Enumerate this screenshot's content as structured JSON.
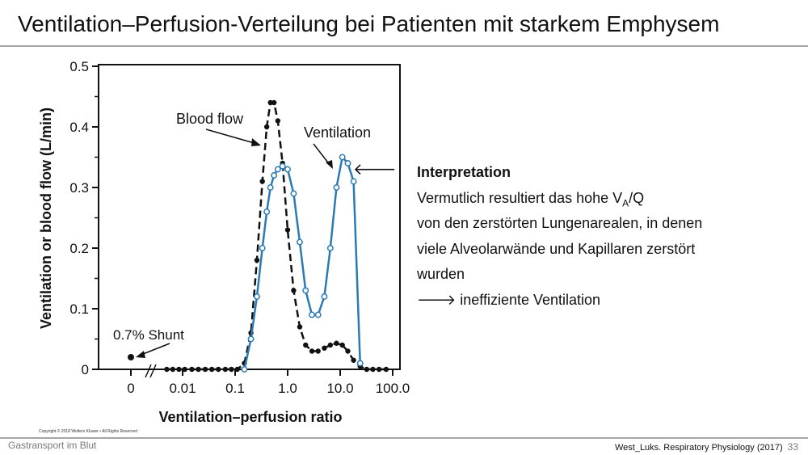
{
  "slide": {
    "title": "Ventilation–Perfusion-Verteilung bei Patienten mit starkem Emphysem"
  },
  "interpretation": {
    "heading": "Interpretation",
    "line1_pre": "Vermutlich resultiert das hohe V",
    "line1_sub": "A",
    "line1_post": "/Q",
    "line2": "von den zerstörten Lungenarealen, in denen",
    "line3": "viele Alveolarwände und  Kapillaren zerstört",
    "line4": "wurden",
    "line5": "🡒 ineffiziente Ventilation"
  },
  "footer": {
    "left": "Gastransport im Blut",
    "right": "West_Luks. Respiratory Physiology (2017)",
    "page": "33",
    "copyright": "Copyright © 2018 Wolters Kluwer • All Rights Reserved"
  },
  "chart_data": {
    "type": "line",
    "xlabel": "Ventilation–perfusion ratio",
    "ylabel": "Ventilation or blood flow (L/min)",
    "x_scale": "log",
    "x_ticks": [
      "0",
      "0.01",
      "0.1",
      "1.0",
      "10.0",
      "100.0"
    ],
    "y_ticks": [
      "0",
      "0.1",
      "0.2",
      "0.3",
      "0.4",
      "0.5"
    ],
    "ylim": [
      0,
      0.5
    ],
    "xlim": [
      0.003,
      100
    ],
    "colors": {
      "blood_flow": "#111111",
      "ventilation": "#2a7ab5"
    },
    "annotations": {
      "blood_flow_label": "Blood flow",
      "ventilation_label": "Ventilation",
      "shunt_label": "0.7% Shunt",
      "arrow_glyph": "🡐"
    },
    "shunt_point": {
      "x": 0,
      "y": 0.02
    },
    "series": [
      {
        "name": "Blood flow",
        "x": [
          0.005,
          0.0065,
          0.0085,
          0.011,
          0.015,
          0.02,
          0.027,
          0.036,
          0.048,
          0.065,
          0.085,
          0.11,
          0.15,
          0.2,
          0.26,
          0.33,
          0.4,
          0.47,
          0.55,
          0.65,
          0.8,
          1.0,
          1.3,
          1.7,
          2.2,
          2.9,
          3.8,
          5.0,
          6.5,
          8.5,
          11,
          14,
          18,
          24,
          32,
          42,
          55,
          75
        ],
        "values": [
          0,
          0,
          0,
          0,
          0,
          0,
          0,
          0,
          0,
          0,
          0,
          0,
          0.01,
          0.06,
          0.18,
          0.31,
          0.4,
          0.44,
          0.44,
          0.41,
          0.34,
          0.23,
          0.13,
          0.07,
          0.04,
          0.03,
          0.03,
          0.035,
          0.04,
          0.043,
          0.04,
          0.03,
          0.015,
          0.005,
          0,
          0,
          0,
          0
        ]
      },
      {
        "name": "Ventilation",
        "x": [
          0.15,
          0.2,
          0.26,
          0.33,
          0.4,
          0.47,
          0.55,
          0.65,
          0.8,
          1.0,
          1.3,
          1.7,
          2.2,
          2.9,
          3.8,
          5.0,
          6.5,
          8.5,
          11,
          14,
          18,
          24
        ],
        "values": [
          0,
          0.05,
          0.12,
          0.2,
          0.26,
          0.3,
          0.32,
          0.33,
          0.335,
          0.33,
          0.29,
          0.21,
          0.13,
          0.09,
          0.09,
          0.12,
          0.2,
          0.3,
          0.35,
          0.34,
          0.31,
          0.01
        ]
      }
    ]
  }
}
